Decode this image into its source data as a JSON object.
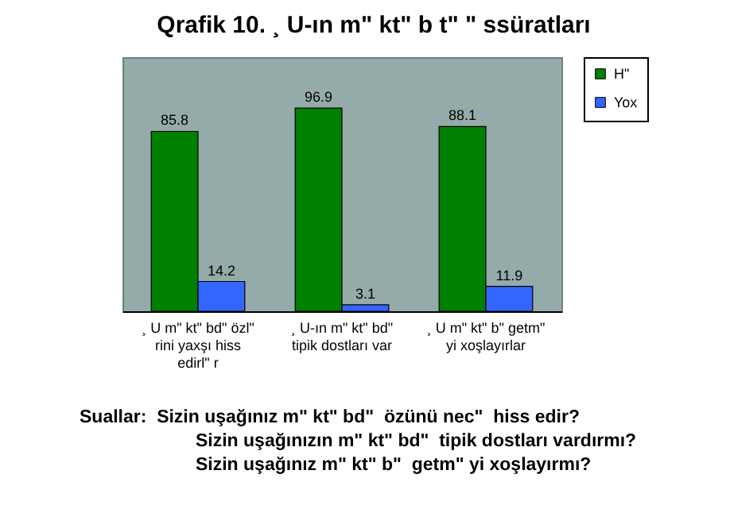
{
  "chart_data": {
    "type": "bar",
    "title": "Qrafik 10. ¸ U-ın m\" kt\" b t\" \" ssüratları",
    "categories": [
      "¸ U m\" kt\" bd\" özl\" rini yaxşı hiss edirl\" r",
      "¸ U-ın m\" kt\" bd\" tipik dostları var",
      "¸ U m\" kt\" b\" getm\" yi xoşlayırlar"
    ],
    "series": [
      {
        "name": "H\"",
        "color": "#008000",
        "values": [
          85.8,
          96.9,
          88.1
        ]
      },
      {
        "name": "Yox",
        "color": "#3366ff",
        "values": [
          14.2,
          3.1,
          11.9
        ]
      }
    ],
    "data_labels": true,
    "legend": "right",
    "grid": false,
    "annotations": [
      "Suallar:  Sizin uşağınız m\" kt\" bd\"  özünü nec\"  hiss edir?",
      "Sizin uşağınızın m\" kt\" bd\"  tipik dostları vardırmı?",
      "Sizin uşağınız m\" kt\" b\"  getm\" yi xoşlayırmı?"
    ]
  }
}
